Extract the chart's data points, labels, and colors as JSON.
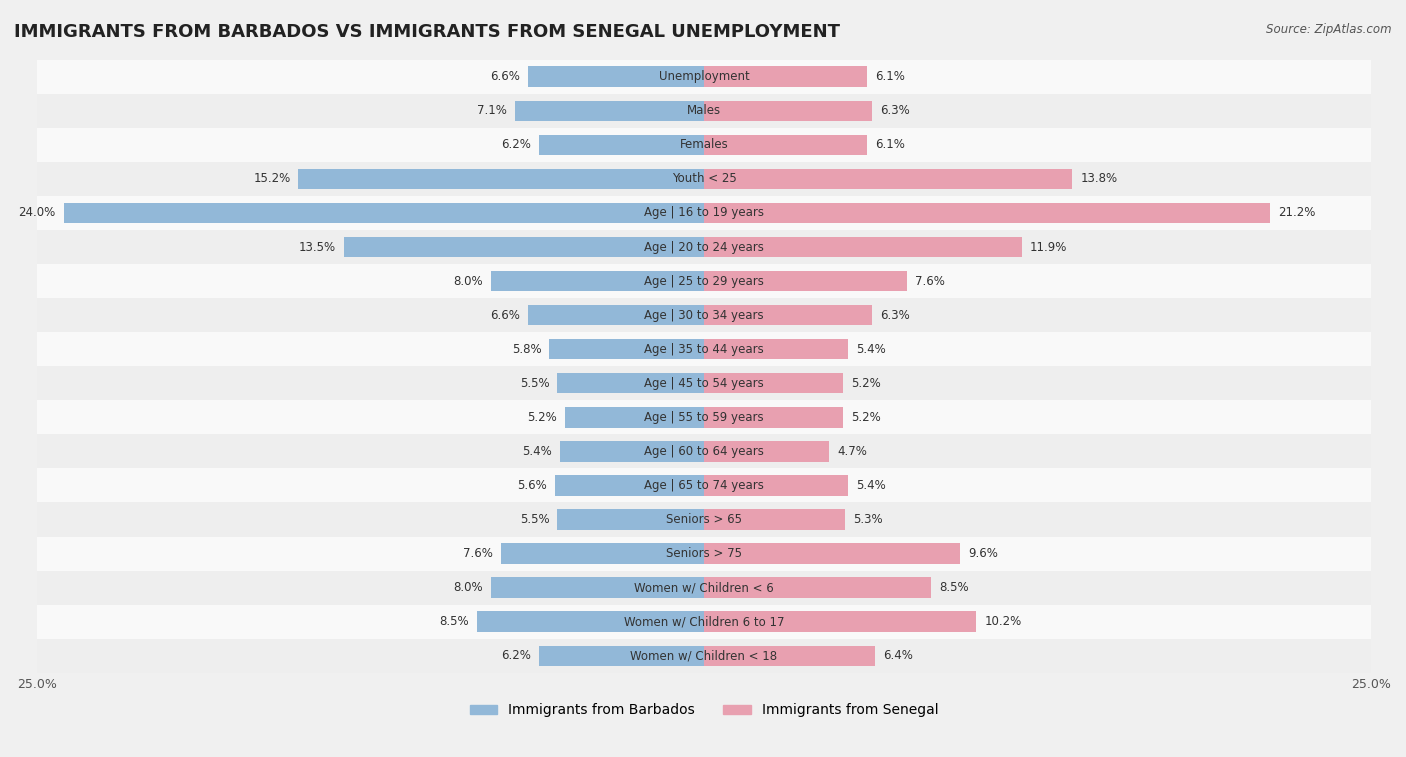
{
  "title": "IMMIGRANTS FROM BARBADOS VS IMMIGRANTS FROM SENEGAL UNEMPLOYMENT",
  "source": "Source: ZipAtlas.com",
  "categories": [
    "Unemployment",
    "Males",
    "Females",
    "Youth < 25",
    "Age | 16 to 19 years",
    "Age | 20 to 24 years",
    "Age | 25 to 29 years",
    "Age | 30 to 34 years",
    "Age | 35 to 44 years",
    "Age | 45 to 54 years",
    "Age | 55 to 59 years",
    "Age | 60 to 64 years",
    "Age | 65 to 74 years",
    "Seniors > 65",
    "Seniors > 75",
    "Women w/ Children < 6",
    "Women w/ Children 6 to 17",
    "Women w/ Children < 18"
  ],
  "barbados_values": [
    6.6,
    7.1,
    6.2,
    15.2,
    24.0,
    13.5,
    8.0,
    6.6,
    5.8,
    5.5,
    5.2,
    5.4,
    5.6,
    5.5,
    7.6,
    8.0,
    8.5,
    6.2
  ],
  "senegal_values": [
    6.1,
    6.3,
    6.1,
    13.8,
    21.2,
    11.9,
    7.6,
    6.3,
    5.4,
    5.2,
    5.2,
    4.7,
    5.4,
    5.3,
    9.6,
    8.5,
    10.2,
    6.4
  ],
  "barbados_color": "#92b8d8",
  "senegal_color": "#e8a0b0",
  "background_color": "#f0f0f0",
  "row_bg_light": "#f9f9f9",
  "row_bg_dark": "#eeeeee",
  "xlim": 25.0,
  "bar_height": 0.6,
  "legend_barbados": "Immigrants from Barbados",
  "legend_senegal": "Immigrants from Senegal"
}
